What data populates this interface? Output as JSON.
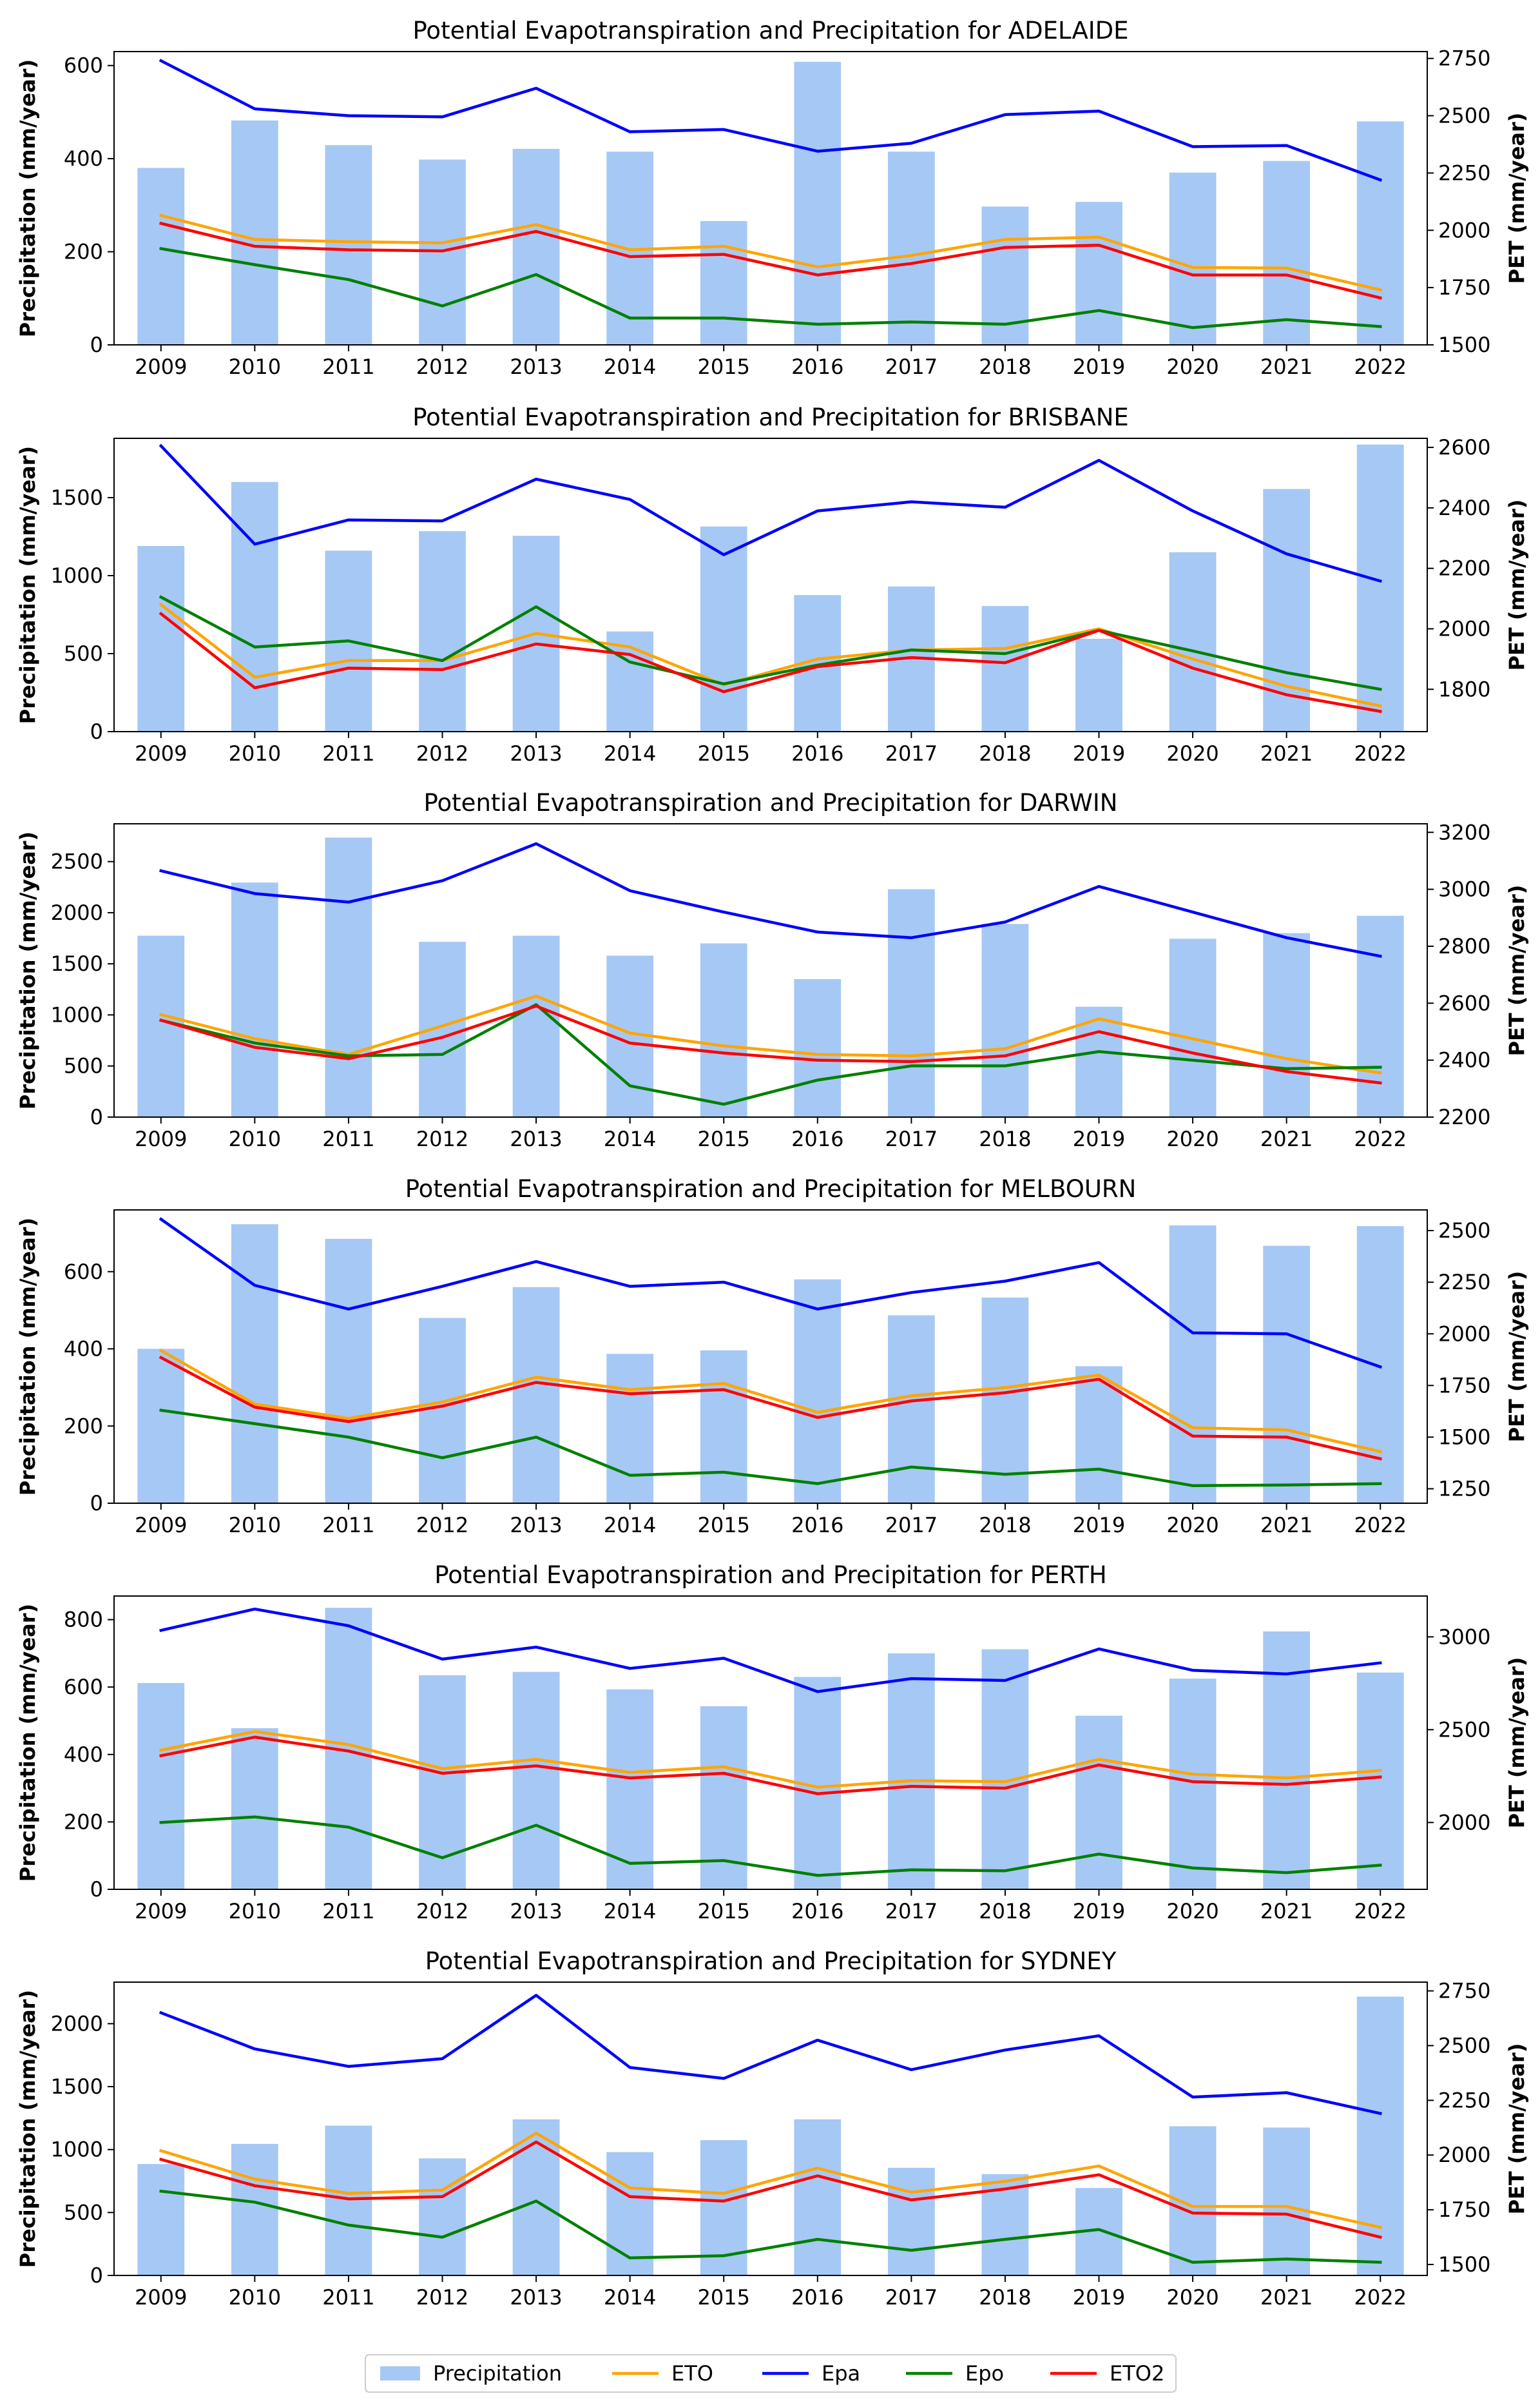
{
  "legend": {
    "items": [
      {
        "label": "Precipitation",
        "kind": "bar",
        "color": "#a6c8f4"
      },
      {
        "label": "ETO",
        "kind": "line",
        "color": "#ffa500"
      },
      {
        "label": "Epa",
        "kind": "line",
        "color": "#0000ff"
      },
      {
        "label": "Epo",
        "kind": "line",
        "color": "#008000"
      },
      {
        "label": "ETO2",
        "kind": "line",
        "color": "#ff0000"
      }
    ]
  },
  "chart_data": [
    {
      "type": "bar",
      "title": "Potential Evapotranspiration and Precipitation for ADELAIDE",
      "ylabel": "Precipitation (mm/year)",
      "ylabel2": "PET (mm/year)",
      "categories": [
        "2009",
        "2010",
        "2011",
        "2012",
        "2013",
        "2014",
        "2015",
        "2016",
        "2017",
        "2018",
        "2019",
        "2020",
        "2021",
        "2022"
      ],
      "ylim": [
        0,
        630
      ],
      "yticks": [
        0,
        200,
        400,
        600
      ],
      "y2lim": [
        1500,
        2780
      ],
      "y2ticks": [
        1500,
        1750,
        2000,
        2250,
        2500,
        2750
      ],
      "series": [
        {
          "name": "Precipitation",
          "axis": "left",
          "values": [
            380,
            482,
            429,
            398,
            421,
            415,
            266,
            608,
            415,
            297,
            307,
            370,
            395,
            480
          ]
        },
        {
          "name": "ETO",
          "axis": "right",
          "values": [
            2065,
            1960,
            1950,
            1945,
            2025,
            1915,
            1930,
            1840,
            1890,
            1960,
            1970,
            1838,
            1835,
            1740
          ]
        },
        {
          "name": "Epa",
          "axis": "right",
          "values": [
            2740,
            2530,
            2500,
            2495,
            2620,
            2430,
            2440,
            2345,
            2380,
            2505,
            2520,
            2365,
            2370,
            2220
          ]
        },
        {
          "name": "Epo",
          "axis": "right",
          "values": [
            1920,
            1850,
            1785,
            1670,
            1807,
            1617,
            1617,
            1590,
            1600,
            1590,
            1650,
            1575,
            1610,
            1580
          ]
        },
        {
          "name": "ETO2",
          "axis": "right",
          "values": [
            2030,
            1930,
            1915,
            1910,
            1995,
            1885,
            1895,
            1805,
            1855,
            1925,
            1935,
            1805,
            1805,
            1705
          ]
        }
      ]
    },
    {
      "type": "bar",
      "title": "Potential Evapotranspiration and Precipitation for BRISBANE",
      "ylabel": "Precipitation (mm/year)",
      "ylabel2": "PET (mm/year)",
      "categories": [
        "2009",
        "2010",
        "2011",
        "2012",
        "2013",
        "2014",
        "2015",
        "2016",
        "2017",
        "2018",
        "2019",
        "2020",
        "2021",
        "2022"
      ],
      "ylim": [
        0,
        1880
      ],
      "yticks": [
        0,
        500,
        1000,
        1500
      ],
      "y2lim": [
        1660,
        2630
      ],
      "y2ticks": [
        1800,
        2000,
        2200,
        2400,
        2600
      ],
      "series": [
        {
          "name": "Precipitation",
          "axis": "left",
          "values": [
            1190,
            1600,
            1160,
            1285,
            1255,
            642,
            1315,
            875,
            930,
            805,
            595,
            1150,
            1555,
            1840
          ]
        },
        {
          "name": "ETO",
          "axis": "right",
          "values": [
            2080,
            1840,
            1895,
            1895,
            1985,
            1940,
            1815,
            1900,
            1930,
            1935,
            2000,
            1900,
            1810,
            1745
          ]
        },
        {
          "name": "Epa",
          "axis": "right",
          "values": [
            2605,
            2280,
            2360,
            2357,
            2495,
            2428,
            2245,
            2390,
            2420,
            2402,
            2557,
            2390,
            2248,
            2158
          ]
        },
        {
          "name": "Epo",
          "axis": "right",
          "values": [
            2105,
            1940,
            1960,
            1895,
            2073,
            1890,
            1818,
            1880,
            1930,
            1918,
            1995,
            1927,
            1855,
            1800
          ]
        },
        {
          "name": "ETO2",
          "axis": "right",
          "values": [
            2050,
            1805,
            1870,
            1865,
            1950,
            1915,
            1792,
            1875,
            1905,
            1888,
            1995,
            1870,
            1782,
            1727
          ]
        }
      ]
    },
    {
      "type": "bar",
      "title": "Potential Evapotranspiration and Precipitation for DARWIN",
      "ylabel": "Precipitation (mm/year)",
      "ylabel2": "PET (mm/year)",
      "categories": [
        "2009",
        "2010",
        "2011",
        "2012",
        "2013",
        "2014",
        "2015",
        "2016",
        "2017",
        "2018",
        "2019",
        "2020",
        "2021",
        "2022"
      ],
      "ylim": [
        0,
        2870
      ],
      "yticks": [
        0,
        500,
        1000,
        1500,
        2000,
        2500
      ],
      "y2lim": [
        2200,
        3230
      ],
      "y2ticks": [
        2200,
        2400,
        2600,
        2800,
        3000,
        3200
      ],
      "series": [
        {
          "name": "Precipitation",
          "axis": "left",
          "values": [
            1775,
            2295,
            2735,
            1715,
            1775,
            1580,
            1700,
            1350,
            2230,
            1890,
            1080,
            1745,
            1800,
            1970
          ]
        },
        {
          "name": "ETO",
          "axis": "right",
          "values": [
            2560,
            2475,
            2420,
            2520,
            2625,
            2495,
            2450,
            2420,
            2415,
            2440,
            2545,
            2475,
            2405,
            2355
          ]
        },
        {
          "name": "Epa",
          "axis": "right",
          "values": [
            3065,
            2985,
            2955,
            3030,
            3160,
            2995,
            2920,
            2850,
            2830,
            2885,
            3010,
            2920,
            2830,
            2765
          ]
        },
        {
          "name": "Epo",
          "axis": "right",
          "values": [
            2540,
            2460,
            2415,
            2420,
            2595,
            2310,
            2245,
            2330,
            2380,
            2380,
            2430,
            2400,
            2370,
            2375
          ]
        },
        {
          "name": "ETO2",
          "axis": "right",
          "values": [
            2540,
            2445,
            2405,
            2480,
            2590,
            2460,
            2425,
            2400,
            2395,
            2415,
            2500,
            2425,
            2360,
            2320
          ]
        }
      ]
    },
    {
      "type": "bar",
      "title": "Potential Evapotranspiration and Precipitation for MELBOURN",
      "ylabel": "Precipitation (mm/year)",
      "ylabel2": "PET (mm/year)",
      "categories": [
        "2009",
        "2010",
        "2011",
        "2012",
        "2013",
        "2014",
        "2015",
        "2016",
        "2017",
        "2018",
        "2019",
        "2020",
        "2021",
        "2022"
      ],
      "ylim": [
        0,
        760
      ],
      "yticks": [
        0,
        200,
        400,
        600
      ],
      "y2lim": [
        1180,
        2600
      ],
      "y2ticks": [
        1250,
        1500,
        1750,
        2000,
        2250,
        2500
      ],
      "series": [
        {
          "name": "Precipitation",
          "axis": "left",
          "values": [
            400,
            723,
            685,
            480,
            560,
            387,
            396,
            580,
            487,
            533,
            355,
            720,
            667,
            718
          ]
        },
        {
          "name": "ETO",
          "axis": "right",
          "values": [
            1920,
            1660,
            1590,
            1670,
            1790,
            1730,
            1760,
            1620,
            1700,
            1740,
            1800,
            1545,
            1535,
            1430
          ]
        },
        {
          "name": "Epa",
          "axis": "right",
          "values": [
            2555,
            2235,
            2120,
            2230,
            2350,
            2230,
            2250,
            2120,
            2200,
            2255,
            2345,
            2005,
            2000,
            1840
          ]
        },
        {
          "name": "Epo",
          "axis": "right",
          "values": [
            1630,
            1565,
            1500,
            1400,
            1500,
            1315,
            1330,
            1275,
            1355,
            1320,
            1345,
            1265,
            1268,
            1275
          ]
        },
        {
          "name": "ETO2",
          "axis": "right",
          "values": [
            1885,
            1645,
            1575,
            1650,
            1765,
            1710,
            1730,
            1595,
            1675,
            1715,
            1780,
            1505,
            1500,
            1395
          ]
        }
      ]
    },
    {
      "type": "bar",
      "title": "Potential Evapotranspiration and Precipitation for PERTH",
      "ylabel": "Precipitation (mm/year)",
      "ylabel2": "PET (mm/year)",
      "categories": [
        "2009",
        "2010",
        "2011",
        "2012",
        "2013",
        "2014",
        "2015",
        "2016",
        "2017",
        "2018",
        "2019",
        "2020",
        "2021",
        "2022"
      ],
      "ylim": [
        0,
        870
      ],
      "yticks": [
        0,
        200,
        400,
        600,
        800
      ],
      "y2lim": [
        1640,
        3220
      ],
      "y2ticks": [
        2000,
        2500,
        3000
      ],
      "series": [
        {
          "name": "Precipitation",
          "axis": "left",
          "values": [
            612,
            478,
            835,
            635,
            645,
            593,
            543,
            630,
            700,
            712,
            515,
            625,
            765,
            643
          ]
        },
        {
          "name": "ETO",
          "axis": "right",
          "values": [
            2390,
            2490,
            2420,
            2290,
            2340,
            2270,
            2300,
            2190,
            2225,
            2220,
            2340,
            2260,
            2240,
            2280
          ]
        },
        {
          "name": "Epa",
          "axis": "right",
          "values": [
            3035,
            3150,
            3060,
            2880,
            2945,
            2830,
            2885,
            2705,
            2775,
            2765,
            2935,
            2820,
            2800,
            2860
          ]
        },
        {
          "name": "Epo",
          "axis": "right",
          "values": [
            2000,
            2030,
            1975,
            1810,
            1985,
            1780,
            1795,
            1715,
            1745,
            1740,
            1830,
            1755,
            1730,
            1770
          ]
        },
        {
          "name": "ETO2",
          "axis": "right",
          "values": [
            2360,
            2460,
            2385,
            2265,
            2305,
            2240,
            2265,
            2155,
            2195,
            2185,
            2310,
            2220,
            2205,
            2245
          ]
        }
      ]
    },
    {
      "type": "bar",
      "title": "Potential Evapotranspiration and Precipitation for SYDNEY",
      "ylabel": "Precipitation (mm/year)",
      "ylabel2": "PET (mm/year)",
      "categories": [
        "2009",
        "2010",
        "2011",
        "2012",
        "2013",
        "2014",
        "2015",
        "2016",
        "2017",
        "2018",
        "2019",
        "2020",
        "2021",
        "2022"
      ],
      "ylim": [
        0,
        2330
      ],
      "yticks": [
        0,
        500,
        1000,
        1500,
        2000
      ],
      "y2lim": [
        1450,
        2790
      ],
      "y2ticks": [
        1500,
        1750,
        2000,
        2250,
        2500,
        2750
      ],
      "series": [
        {
          "name": "Precipitation",
          "axis": "left",
          "values": [
            885,
            1045,
            1190,
            930,
            1240,
            980,
            1075,
            1240,
            855,
            805,
            695,
            1185,
            1175,
            2215
          ]
        },
        {
          "name": "ETO",
          "axis": "right",
          "values": [
            2020,
            1890,
            1825,
            1840,
            2100,
            1850,
            1825,
            1940,
            1830,
            1880,
            1950,
            1765,
            1765,
            1670
          ]
        },
        {
          "name": "Epa",
          "axis": "right",
          "values": [
            2650,
            2485,
            2405,
            2440,
            2730,
            2400,
            2350,
            2525,
            2390,
            2480,
            2545,
            2265,
            2285,
            2190
          ]
        },
        {
          "name": "Epo",
          "axis": "right",
          "values": [
            1835,
            1785,
            1680,
            1625,
            1790,
            1530,
            1540,
            1615,
            1565,
            1615,
            1660,
            1510,
            1525,
            1510
          ]
        },
        {
          "name": "ETO2",
          "axis": "right",
          "values": [
            1980,
            1860,
            1800,
            1810,
            2060,
            1810,
            1790,
            1905,
            1795,
            1845,
            1910,
            1735,
            1730,
            1625
          ]
        }
      ]
    }
  ]
}
